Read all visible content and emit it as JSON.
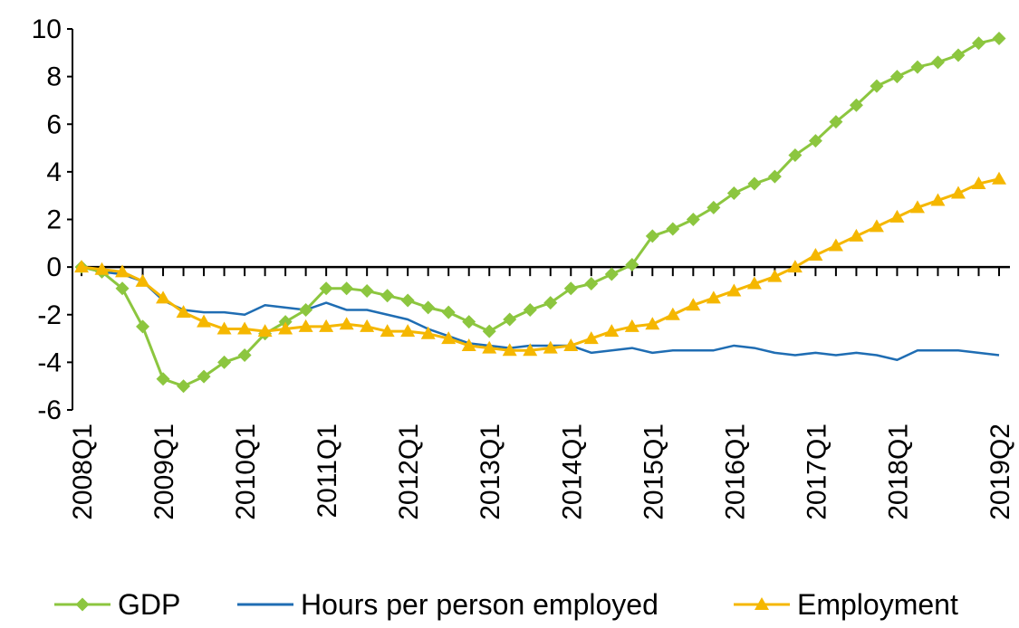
{
  "chart_data": {
    "type": "line",
    "title": "",
    "xlabel": "",
    "ylabel": "",
    "ylim": [
      -6,
      10
    ],
    "yticks": [
      -6,
      -4,
      -2,
      0,
      2,
      4,
      6,
      8,
      10
    ],
    "ytick_labels": [
      "-6",
      "-4",
      "-2",
      "0",
      "2",
      "4",
      "6",
      "8",
      "10"
    ],
    "x_start": "2008Q1",
    "x_end": "2019Q2",
    "xtick_labels": [
      "2008Q1",
      "2009Q1",
      "2010Q1",
      "2011Q1",
      "2012Q1",
      "2013Q1",
      "2014Q1",
      "2015Q1",
      "2016Q1",
      "2017Q1",
      "2018Q1",
      "2019Q2"
    ],
    "x": [
      "2008Q1",
      "2008Q2",
      "2008Q3",
      "2008Q4",
      "2009Q1",
      "2009Q2",
      "2009Q3",
      "2009Q4",
      "2010Q1",
      "2010Q2",
      "2010Q3",
      "2010Q4",
      "2011Q1",
      "2011Q2",
      "2011Q3",
      "2011Q4",
      "2012Q1",
      "2012Q2",
      "2012Q3",
      "2012Q4",
      "2013Q1",
      "2013Q2",
      "2013Q3",
      "2013Q4",
      "2014Q1",
      "2014Q2",
      "2014Q3",
      "2014Q4",
      "2015Q1",
      "2015Q2",
      "2015Q3",
      "2015Q4",
      "2016Q1",
      "2016Q2",
      "2016Q3",
      "2016Q4",
      "2017Q1",
      "2017Q2",
      "2017Q3",
      "2017Q4",
      "2018Q1",
      "2018Q2",
      "2018Q3",
      "2018Q4",
      "2019Q1",
      "2019Q2"
    ],
    "grid": false,
    "legend_position": "bottom",
    "series": [
      {
        "name": "GDP",
        "color": "#8cc63f",
        "marker": "diamond",
        "values": [
          0,
          -0.2,
          -0.9,
          -2.5,
          -4.7,
          -5.0,
          -4.6,
          -4.0,
          -3.7,
          -2.8,
          -2.3,
          -1.8,
          -0.9,
          -0.9,
          -1.0,
          -1.2,
          -1.4,
          -1.7,
          -1.9,
          -2.3,
          -2.7,
          -2.2,
          -1.8,
          -1.5,
          -0.9,
          -0.7,
          -0.3,
          0.1,
          1.3,
          1.6,
          2.0,
          2.5,
          3.1,
          3.5,
          3.8,
          4.7,
          5.3,
          6.1,
          6.8,
          7.6,
          8.0,
          8.4,
          8.6,
          8.9,
          9.4,
          9.6
        ]
      },
      {
        "name": "Hours per person employed",
        "color": "#1f6db3",
        "marker": "none",
        "values": [
          0,
          -0.2,
          -0.3,
          -0.6,
          -1.4,
          -1.8,
          -1.9,
          -1.9,
          -2.0,
          -1.6,
          -1.7,
          -1.8,
          -1.5,
          -1.8,
          -1.8,
          -2.0,
          -2.2,
          -2.6,
          -2.9,
          -3.2,
          -3.3,
          -3.4,
          -3.3,
          -3.3,
          -3.3,
          -3.6,
          -3.5,
          -3.4,
          -3.6,
          -3.5,
          -3.5,
          -3.5,
          -3.3,
          -3.4,
          -3.6,
          -3.7,
          -3.6,
          -3.7,
          -3.6,
          -3.7,
          -3.9,
          -3.5,
          -3.5,
          -3.5,
          -3.6,
          -3.7
        ]
      },
      {
        "name": "Employment",
        "color": "#f5b700",
        "marker": "triangle",
        "values": [
          0,
          -0.1,
          -0.2,
          -0.6,
          -1.3,
          -1.9,
          -2.3,
          -2.6,
          -2.6,
          -2.7,
          -2.6,
          -2.5,
          -2.5,
          -2.4,
          -2.5,
          -2.7,
          -2.7,
          -2.8,
          -3.0,
          -3.3,
          -3.4,
          -3.5,
          -3.5,
          -3.4,
          -3.3,
          -3.0,
          -2.7,
          -2.5,
          -2.4,
          -2.0,
          -1.6,
          -1.3,
          -1.0,
          -0.7,
          -0.4,
          0.0,
          0.5,
          0.9,
          1.3,
          1.7,
          2.1,
          2.5,
          2.8,
          3.1,
          3.5,
          3.7
        ]
      }
    ]
  }
}
